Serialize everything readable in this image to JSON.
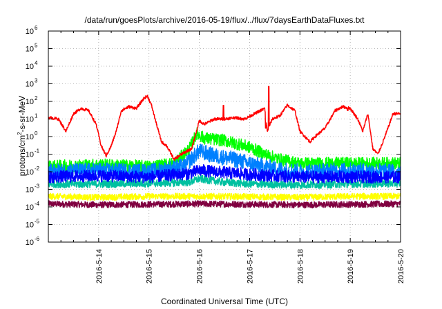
{
  "chart_data": {
    "type": "line",
    "title": "/data/run/goesPlots/archive/2016-05-19/flux/../flux/7daysEarthDataFluxes.txt",
    "xlabel": "Coordinated Universal Time (UTC)",
    "ylabel_prefix": "protons/cm",
    "ylabel_sup": "2",
    "ylabel_suffix": "-s-sr-MeV",
    "log_y": true,
    "grid": true,
    "xlim": [
      13.0,
      20.0
    ],
    "x_unit": "day of May 2016",
    "ylim": [
      1e-06,
      1000000.0
    ],
    "x_ticks": [
      {
        "x": 14,
        "label": "2016-5-14"
      },
      {
        "x": 15,
        "label": "2016-5-15"
      },
      {
        "x": 16,
        "label": "2016-5-16"
      },
      {
        "x": 17,
        "label": "2016-5-17"
      },
      {
        "x": 18,
        "label": "2016-5-18"
      },
      {
        "x": 19,
        "label": "2016-5-19"
      },
      {
        "x": 20,
        "label": "2016-5-20"
      }
    ],
    "y_ticks": [
      {
        "exp": -6,
        "label_base": "10",
        "label_exp": "-6"
      },
      {
        "exp": -5,
        "label_base": "10",
        "label_exp": "-5"
      },
      {
        "exp": -4,
        "label_base": "10",
        "label_exp": "-4"
      },
      {
        "exp": -3,
        "label_base": "10",
        "label_exp": "-3"
      },
      {
        "exp": -2,
        "label_base": "10",
        "label_exp": "-2"
      },
      {
        "exp": -1,
        "label_base": "10",
        "label_exp": "-1"
      },
      {
        "exp": 0,
        "label_base": "10",
        "label_exp": "0"
      },
      {
        "exp": 1,
        "label_base": "10",
        "label_exp": "1"
      },
      {
        "exp": 2,
        "label_base": "10",
        "label_exp": "2"
      },
      {
        "exp": 3,
        "label_base": "10",
        "label_exp": "3"
      },
      {
        "exp": 4,
        "label_base": "10",
        "label_exp": "4"
      },
      {
        "exp": 5,
        "label_base": "10",
        "label_exp": "5"
      },
      {
        "exp": 6,
        "label_base": "10",
        "label_exp": "6"
      }
    ],
    "series": [
      {
        "color": "#800040",
        "noise": 0.18,
        "points": [
          [
            13.0,
            0.00015
          ],
          [
            14.0,
            0.00013
          ],
          [
            15.0,
            0.00014
          ],
          [
            16.0,
            0.00015
          ],
          [
            17.0,
            0.00014
          ],
          [
            18.0,
            0.00013
          ],
          [
            19.0,
            0.00014
          ],
          [
            20.0,
            0.00015
          ]
        ]
      },
      {
        "color": "#ffff00",
        "noise": 0.18,
        "points": [
          [
            13.0,
            0.0004
          ],
          [
            14.0,
            0.00035
          ],
          [
            15.0,
            0.0004
          ],
          [
            16.0,
            0.0004
          ],
          [
            17.0,
            0.00038
          ],
          [
            18.0,
            0.00035
          ],
          [
            19.0,
            0.0004
          ],
          [
            20.0,
            0.0004
          ]
        ]
      },
      {
        "color": "#00c0a0",
        "noise": 0.22,
        "points": [
          [
            13.0,
            0.002
          ],
          [
            14.0,
            0.002
          ],
          [
            15.0,
            0.0022
          ],
          [
            15.8,
            0.0025
          ],
          [
            16.0,
            0.004
          ],
          [
            16.5,
            0.0025
          ],
          [
            17.0,
            0.002
          ],
          [
            18.0,
            0.0018
          ],
          [
            19.0,
            0.002
          ],
          [
            20.0,
            0.0022
          ]
        ]
      },
      {
        "color": "#00ff00",
        "noise": 0.35,
        "points": [
          [
            13.0,
            0.02
          ],
          [
            14.0,
            0.025
          ],
          [
            15.0,
            0.02
          ],
          [
            15.5,
            0.03
          ],
          [
            15.8,
            0.2
          ],
          [
            15.95,
            1.5
          ],
          [
            16.1,
            0.8
          ],
          [
            16.5,
            0.6
          ],
          [
            17.0,
            0.25
          ],
          [
            17.3,
            0.1
          ],
          [
            17.6,
            0.05
          ],
          [
            18.0,
            0.03
          ],
          [
            19.0,
            0.03
          ],
          [
            20.0,
            0.03
          ]
        ]
      },
      {
        "color": "#0080ff",
        "noise": 0.45,
        "points": [
          [
            13.0,
            0.01
          ],
          [
            14.0,
            0.012
          ],
          [
            15.0,
            0.01
          ],
          [
            15.7,
            0.02
          ],
          [
            15.9,
            0.08
          ],
          [
            16.0,
            0.15
          ],
          [
            16.3,
            0.08
          ],
          [
            16.7,
            0.05
          ],
          [
            17.0,
            0.03
          ],
          [
            17.5,
            0.015
          ],
          [
            18.0,
            0.01
          ],
          [
            19.0,
            0.012
          ],
          [
            20.0,
            0.01
          ]
        ]
      },
      {
        "color": "#0000ff",
        "noise": 0.35,
        "points": [
          [
            13.0,
            0.005
          ],
          [
            14.0,
            0.006
          ],
          [
            15.0,
            0.005
          ],
          [
            15.8,
            0.008
          ],
          [
            16.0,
            0.012
          ],
          [
            16.3,
            0.01
          ],
          [
            17.0,
            0.007
          ],
          [
            18.0,
            0.005
          ],
          [
            19.0,
            0.005
          ],
          [
            20.0,
            0.005
          ]
        ]
      },
      {
        "color": "#ff0000",
        "noise": 0.08,
        "points": [
          [
            13.0,
            12
          ],
          [
            13.2,
            10
          ],
          [
            13.35,
            2
          ],
          [
            13.5,
            20
          ],
          [
            13.65,
            40
          ],
          [
            13.8,
            30
          ],
          [
            13.95,
            5
          ],
          [
            14.05,
            0.3
          ],
          [
            14.15,
            0.08
          ],
          [
            14.25,
            0.3
          ],
          [
            14.35,
            2
          ],
          [
            14.45,
            30
          ],
          [
            14.6,
            50
          ],
          [
            14.75,
            40
          ],
          [
            14.9,
            150
          ],
          [
            14.97,
            200
          ],
          [
            15.05,
            60
          ],
          [
            15.15,
            5
          ],
          [
            15.25,
            0.5
          ],
          [
            15.35,
            0.3
          ],
          [
            15.5,
            0.05
          ],
          [
            15.65,
            0.1
          ],
          [
            15.75,
            0.15
          ],
          [
            15.85,
            0.2
          ],
          [
            16.0,
            8
          ],
          [
            16.1,
            5
          ],
          [
            16.3,
            10
          ],
          [
            16.5,
            10
          ],
          [
            16.7,
            12
          ],
          [
            16.9,
            10
          ],
          [
            17.0,
            14
          ],
          [
            17.1,
            20
          ],
          [
            17.3,
            40
          ],
          [
            17.35,
            2
          ],
          [
            17.45,
            10
          ],
          [
            17.6,
            15
          ],
          [
            17.75,
            60
          ],
          [
            17.9,
            30
          ],
          [
            18.0,
            2
          ],
          [
            18.1,
            1
          ],
          [
            18.2,
            0.5
          ],
          [
            18.3,
            1
          ],
          [
            18.5,
            3
          ],
          [
            18.7,
            30
          ],
          [
            18.85,
            50
          ],
          [
            19.0,
            40
          ],
          [
            19.15,
            10
          ],
          [
            19.25,
            2
          ],
          [
            19.35,
            20
          ],
          [
            19.45,
            0.2
          ],
          [
            19.55,
            0.1
          ],
          [
            19.65,
            0.5
          ],
          [
            19.75,
            3
          ],
          [
            19.85,
            20
          ],
          [
            20.0,
            20
          ]
        ]
      }
    ],
    "spikes": [
      {
        "series": 6,
        "x": 16.48,
        "y": 60
      },
      {
        "series": 6,
        "x": 17.38,
        "y": 700
      },
      {
        "series": 6,
        "x": 17.32,
        "y": 3
      },
      {
        "series": 6,
        "x": 18.95,
        "y": 30
      }
    ]
  }
}
